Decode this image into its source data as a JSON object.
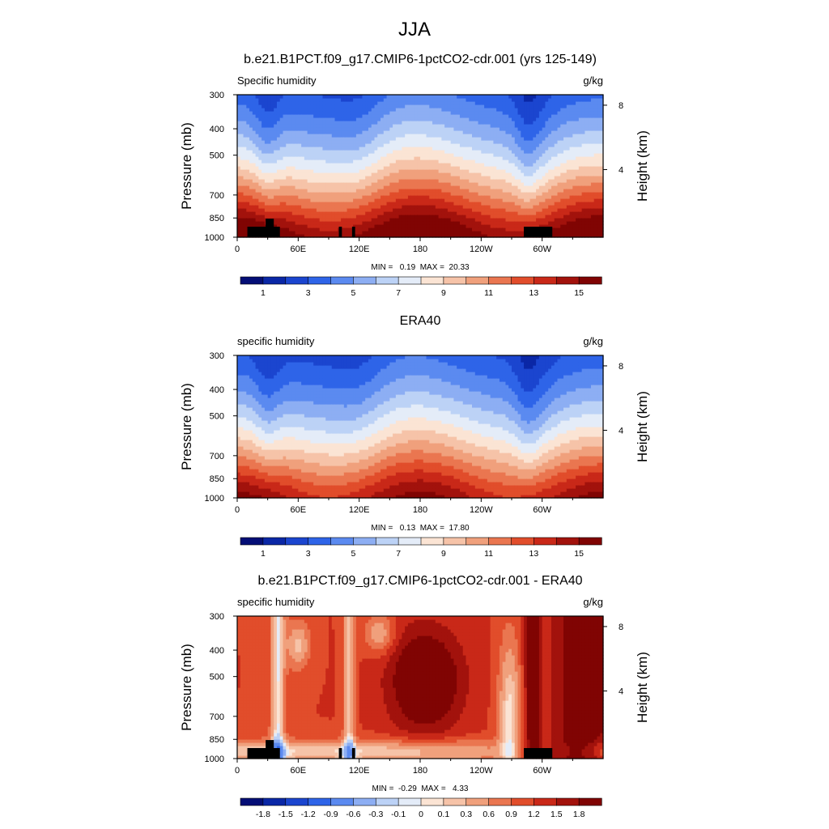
{
  "figure": {
    "title": "JJA"
  },
  "colors": {
    "abs_palette": [
      "#040e76",
      "#0a27a6",
      "#1b45cf",
      "#2e64e8",
      "#5b8af0",
      "#8daef3",
      "#bcd2f6",
      "#e4ecf8",
      "#fbe4d4",
      "#f6c3a8",
      "#f0a07c",
      "#ea7650",
      "#e14d2b",
      "#c92818",
      "#a2120c",
      "#800403"
    ],
    "diff_palette": [
      "#040e76",
      "#0a27a6",
      "#1b45cf",
      "#2e64e8",
      "#5b8af0",
      "#8daef3",
      "#bcd2f6",
      "#e4ecf8",
      "#fbe4d4",
      "#f6c3a8",
      "#f0a07c",
      "#ea7650",
      "#e14d2b",
      "#c92818",
      "#a2120c",
      "#800403"
    ],
    "terrain": "#000000"
  },
  "chart_data": [
    {
      "type": "heatmap",
      "title": "b.e21.B1PCT.f09_g17.CMIP6-1pctCO2-cdr.001 (yrs 125-149)",
      "left_label": "Specific humidity",
      "right_label": "g/kg",
      "xlabel": "",
      "ylabel": "Pressure (mb)",
      "y2label": "Height (km)",
      "x_ticks": [
        "0",
        "60E",
        "120E",
        "180",
        "120W",
        "60W"
      ],
      "x_tick_values": [
        0,
        60,
        120,
        180,
        240,
        300
      ],
      "xlim": [
        0,
        360
      ],
      "y_ticks": [
        "300",
        "400",
        "500",
        "700",
        "850",
        "1000"
      ],
      "y_tick_values": [
        300,
        400,
        500,
        700,
        850,
        1000
      ],
      "ylim": [
        1000,
        300
      ],
      "log_y": true,
      "y2_ticks": [
        "8",
        "4"
      ],
      "y2_tick_values": [
        8,
        4
      ],
      "stats": "MIN =   0.19  MAX =  20.33",
      "colorbar_labels": [
        "1",
        "3",
        "5",
        "7",
        "9",
        "11",
        "13",
        "15"
      ],
      "colorbar_levels": [
        0,
        1,
        2,
        3,
        4,
        5,
        6,
        7,
        8,
        9,
        10,
        11,
        12,
        13,
        14,
        15
      ],
      "field": "abs",
      "scale": 1.12,
      "topography": [
        {
          "lon": [
            10,
            42
          ],
          "p": 915
        },
        {
          "lon": [
            28,
            36
          ],
          "p": 855
        },
        {
          "lon": [
            100,
            103
          ],
          "p": 915
        },
        {
          "lon": [
            113,
            116
          ],
          "p": 915
        },
        {
          "lon": [
            282,
            310
          ],
          "p": 915
        }
      ]
    },
    {
      "type": "heatmap",
      "title": "ERA40",
      "left_label": "specific humidity",
      "right_label": "g/kg",
      "xlabel": "",
      "ylabel": "Pressure (mb)",
      "y2label": "Height (km)",
      "x_ticks": [
        "0",
        "60E",
        "120E",
        "180",
        "120W",
        "60W"
      ],
      "x_tick_values": [
        0,
        60,
        120,
        180,
        240,
        300
      ],
      "xlim": [
        0,
        360
      ],
      "y_ticks": [
        "300",
        "400",
        "500",
        "700",
        "850",
        "1000"
      ],
      "y_tick_values": [
        300,
        400,
        500,
        700,
        850,
        1000
      ],
      "ylim": [
        1000,
        300
      ],
      "log_y": true,
      "y2_ticks": [
        "8",
        "4"
      ],
      "y2_tick_values": [
        8,
        4
      ],
      "stats": "MIN =   0.13  MAX =  17.80",
      "colorbar_labels": [
        "1",
        "3",
        "5",
        "7",
        "9",
        "11",
        "13",
        "15"
      ],
      "colorbar_levels": [
        0,
        1,
        2,
        3,
        4,
        5,
        6,
        7,
        8,
        9,
        10,
        11,
        12,
        13,
        14,
        15
      ],
      "field": "abs",
      "scale": 1.0,
      "topography": []
    },
    {
      "type": "heatmap",
      "title": "b.e21.B1PCT.f09_g17.CMIP6-1pctCO2-cdr.001 - ERA40",
      "left_label": "specific humidity",
      "right_label": "g/kg",
      "xlabel": "",
      "ylabel": "Pressure (mb)",
      "y2label": "Height (km)",
      "x_ticks": [
        "0",
        "60E",
        "120E",
        "180",
        "120W",
        "60W"
      ],
      "x_tick_values": [
        0,
        60,
        120,
        180,
        240,
        300
      ],
      "xlim": [
        0,
        360
      ],
      "y_ticks": [
        "300",
        "400",
        "500",
        "700",
        "850",
        "1000"
      ],
      "y_tick_values": [
        300,
        400,
        500,
        700,
        850,
        1000
      ],
      "ylim": [
        1000,
        300
      ],
      "log_y": true,
      "y2_ticks": [
        "8",
        "4"
      ],
      "y2_tick_values": [
        8,
        4
      ],
      "stats": "MIN =  -0.29  MAX =   4.33",
      "colorbar_labels": [
        "-1.8",
        "-1.5",
        "-1.2",
        "-0.9",
        "-0.6",
        "-0.3",
        "-0.1",
        "0",
        "0.1",
        "0.3",
        "0.6",
        "0.9",
        "1.2",
        "1.5",
        "1.8"
      ],
      "colorbar_levels": [
        -2.1,
        -1.8,
        -1.5,
        -1.2,
        -0.9,
        -0.6,
        -0.3,
        -0.1,
        0,
        0.1,
        0.3,
        0.6,
        0.9,
        1.2,
        1.5,
        1.8
      ],
      "field": "diff",
      "scale": 1.0,
      "topography": [
        {
          "lon": [
            10,
            42
          ],
          "p": 915
        },
        {
          "lon": [
            28,
            36
          ],
          "p": 855
        },
        {
          "lon": [
            100,
            103
          ],
          "p": 915
        },
        {
          "lon": [
            113,
            116
          ],
          "p": 915
        },
        {
          "lon": [
            282,
            310
          ],
          "p": 915
        }
      ]
    }
  ]
}
